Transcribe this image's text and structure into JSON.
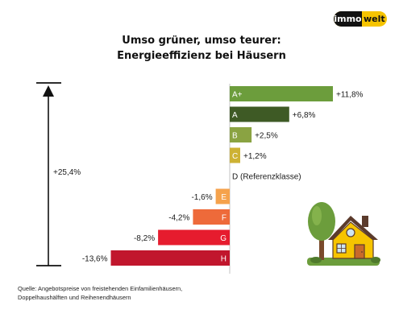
{
  "logo": {
    "part1": "immo",
    "part2": "welt"
  },
  "title_line1": "Umso grüner, umso teurer:",
  "title_line2": "Energieeffizienz bei Häusern",
  "chart_data": {
    "type": "bar",
    "orientation": "horizontal",
    "categories": [
      "A+",
      "A",
      "B",
      "C",
      "D",
      "E",
      "F",
      "G",
      "H"
    ],
    "values": [
      11.8,
      6.8,
      2.5,
      1.2,
      0,
      -1.6,
      -4.2,
      -8.2,
      -13.6
    ],
    "value_labels": [
      "+11,8%",
      "+6,8%",
      "+2,5%",
      "+1,2%",
      "D (Referenzklasse)",
      "-1,6%",
      "-4,2%",
      "-8,2%",
      "-13,6%"
    ],
    "colors": [
      "#6c9d3c",
      "#3e5a25",
      "#8aa342",
      "#cdb234",
      "#ffffff",
      "#f5a24c",
      "#ee6a3a",
      "#e61c2e",
      "#c1162d"
    ],
    "reference_category": "D",
    "xlim": [
      -14,
      12
    ],
    "legend": "none",
    "grid": false,
    "range_annotation": "+25,4%"
  },
  "source_line1": "Quelle: Angebotspreise von freistehenden Einfamilienhäusern,",
  "source_line2": "Doppelhaushälften und Reihenendhäusern",
  "colors": {
    "accent": "#f6c400",
    "roof": "#5b3b2c",
    "house": "#f6c400",
    "tree": "#6c9d3c",
    "grass": "#6c9d3c"
  },
  "icons": [
    "house-illustration",
    "tree-illustration",
    "range-arrow-icon"
  ]
}
